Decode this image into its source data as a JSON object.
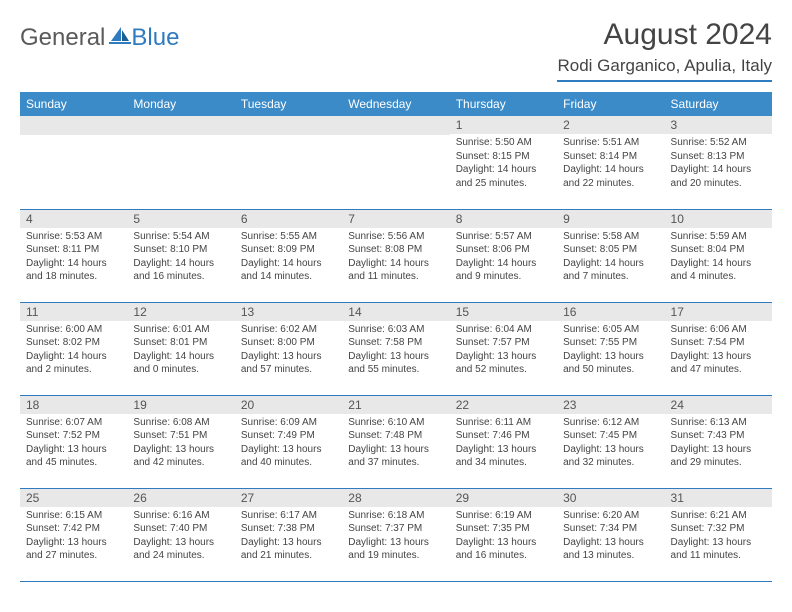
{
  "brand": {
    "word1": "General",
    "word2": "Blue"
  },
  "title": "August 2024",
  "location": "Rodi Garganico, Apulia, Italy",
  "colors": {
    "header_bg": "#3b8bc9",
    "accent": "#2f7bbf",
    "daynum_bg": "#e8e8e8",
    "text": "#444444",
    "page_bg": "#ffffff"
  },
  "weekdays": [
    "Sunday",
    "Monday",
    "Tuesday",
    "Wednesday",
    "Thursday",
    "Friday",
    "Saturday"
  ],
  "weeks": [
    [
      null,
      null,
      null,
      null,
      {
        "n": "1",
        "sunrise": "5:50 AM",
        "sunset": "8:15 PM",
        "daylight": "14 hours and 25 minutes."
      },
      {
        "n": "2",
        "sunrise": "5:51 AM",
        "sunset": "8:14 PM",
        "daylight": "14 hours and 22 minutes."
      },
      {
        "n": "3",
        "sunrise": "5:52 AM",
        "sunset": "8:13 PM",
        "daylight": "14 hours and 20 minutes."
      }
    ],
    [
      {
        "n": "4",
        "sunrise": "5:53 AM",
        "sunset": "8:11 PM",
        "daylight": "14 hours and 18 minutes."
      },
      {
        "n": "5",
        "sunrise": "5:54 AM",
        "sunset": "8:10 PM",
        "daylight": "14 hours and 16 minutes."
      },
      {
        "n": "6",
        "sunrise": "5:55 AM",
        "sunset": "8:09 PM",
        "daylight": "14 hours and 14 minutes."
      },
      {
        "n": "7",
        "sunrise": "5:56 AM",
        "sunset": "8:08 PM",
        "daylight": "14 hours and 11 minutes."
      },
      {
        "n": "8",
        "sunrise": "5:57 AM",
        "sunset": "8:06 PM",
        "daylight": "14 hours and 9 minutes."
      },
      {
        "n": "9",
        "sunrise": "5:58 AM",
        "sunset": "8:05 PM",
        "daylight": "14 hours and 7 minutes."
      },
      {
        "n": "10",
        "sunrise": "5:59 AM",
        "sunset": "8:04 PM",
        "daylight": "14 hours and 4 minutes."
      }
    ],
    [
      {
        "n": "11",
        "sunrise": "6:00 AM",
        "sunset": "8:02 PM",
        "daylight": "14 hours and 2 minutes."
      },
      {
        "n": "12",
        "sunrise": "6:01 AM",
        "sunset": "8:01 PM",
        "daylight": "14 hours and 0 minutes."
      },
      {
        "n": "13",
        "sunrise": "6:02 AM",
        "sunset": "8:00 PM",
        "daylight": "13 hours and 57 minutes."
      },
      {
        "n": "14",
        "sunrise": "6:03 AM",
        "sunset": "7:58 PM",
        "daylight": "13 hours and 55 minutes."
      },
      {
        "n": "15",
        "sunrise": "6:04 AM",
        "sunset": "7:57 PM",
        "daylight": "13 hours and 52 minutes."
      },
      {
        "n": "16",
        "sunrise": "6:05 AM",
        "sunset": "7:55 PM",
        "daylight": "13 hours and 50 minutes."
      },
      {
        "n": "17",
        "sunrise": "6:06 AM",
        "sunset": "7:54 PM",
        "daylight": "13 hours and 47 minutes."
      }
    ],
    [
      {
        "n": "18",
        "sunrise": "6:07 AM",
        "sunset": "7:52 PM",
        "daylight": "13 hours and 45 minutes."
      },
      {
        "n": "19",
        "sunrise": "6:08 AM",
        "sunset": "7:51 PM",
        "daylight": "13 hours and 42 minutes."
      },
      {
        "n": "20",
        "sunrise": "6:09 AM",
        "sunset": "7:49 PM",
        "daylight": "13 hours and 40 minutes."
      },
      {
        "n": "21",
        "sunrise": "6:10 AM",
        "sunset": "7:48 PM",
        "daylight": "13 hours and 37 minutes."
      },
      {
        "n": "22",
        "sunrise": "6:11 AM",
        "sunset": "7:46 PM",
        "daylight": "13 hours and 34 minutes."
      },
      {
        "n": "23",
        "sunrise": "6:12 AM",
        "sunset": "7:45 PM",
        "daylight": "13 hours and 32 minutes."
      },
      {
        "n": "24",
        "sunrise": "6:13 AM",
        "sunset": "7:43 PM",
        "daylight": "13 hours and 29 minutes."
      }
    ],
    [
      {
        "n": "25",
        "sunrise": "6:15 AM",
        "sunset": "7:42 PM",
        "daylight": "13 hours and 27 minutes."
      },
      {
        "n": "26",
        "sunrise": "6:16 AM",
        "sunset": "7:40 PM",
        "daylight": "13 hours and 24 minutes."
      },
      {
        "n": "27",
        "sunrise": "6:17 AM",
        "sunset": "7:38 PM",
        "daylight": "13 hours and 21 minutes."
      },
      {
        "n": "28",
        "sunrise": "6:18 AM",
        "sunset": "7:37 PM",
        "daylight": "13 hours and 19 minutes."
      },
      {
        "n": "29",
        "sunrise": "6:19 AM",
        "sunset": "7:35 PM",
        "daylight": "13 hours and 16 minutes."
      },
      {
        "n": "30",
        "sunrise": "6:20 AM",
        "sunset": "7:34 PM",
        "daylight": "13 hours and 13 minutes."
      },
      {
        "n": "31",
        "sunrise": "6:21 AM",
        "sunset": "7:32 PM",
        "daylight": "13 hours and 11 minutes."
      }
    ]
  ],
  "labels": {
    "sunrise": "Sunrise:",
    "sunset": "Sunset:",
    "daylight": "Daylight:"
  }
}
